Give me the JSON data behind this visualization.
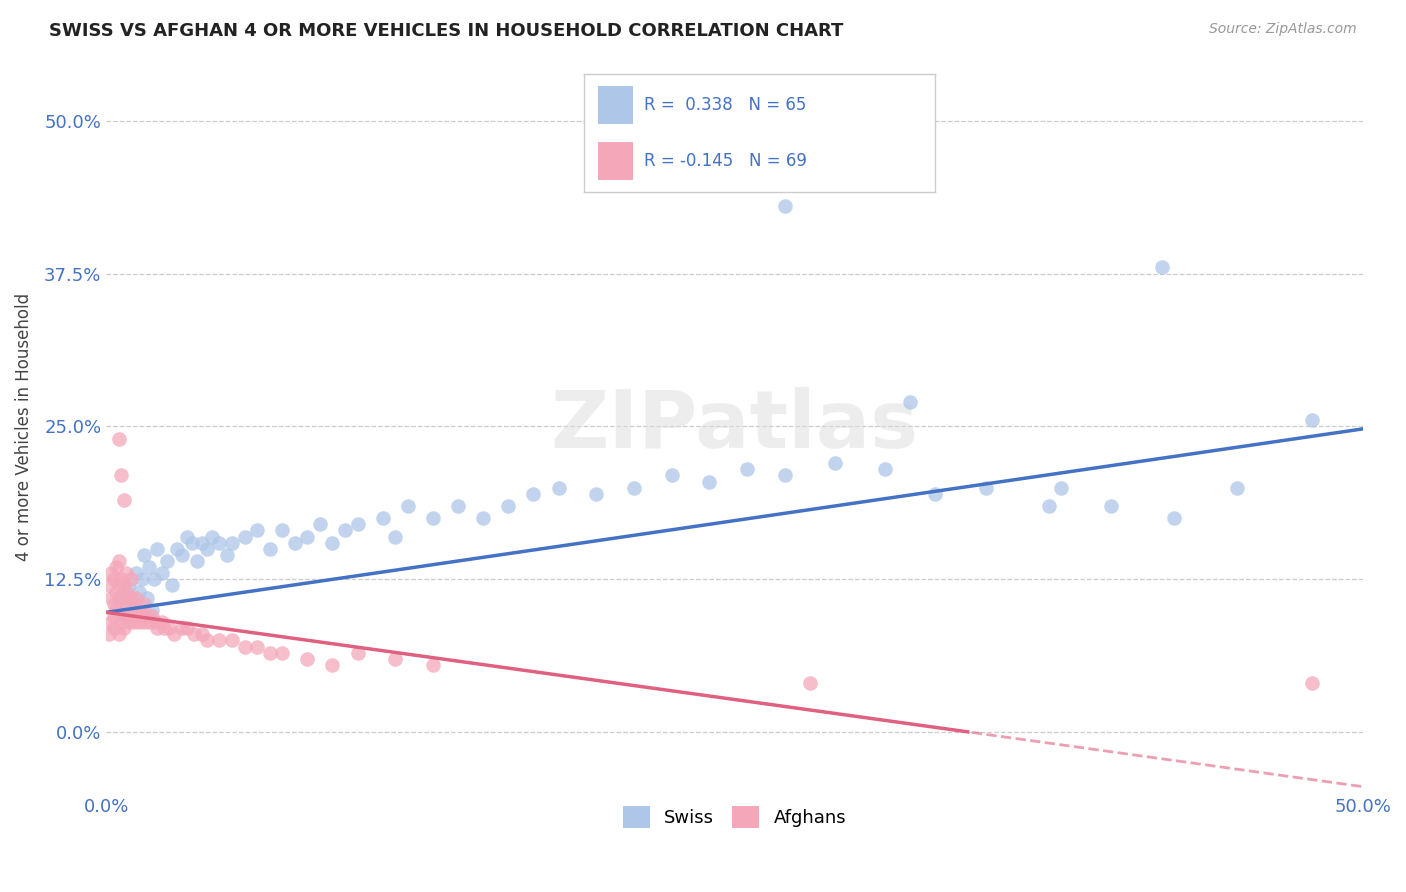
{
  "title": "SWISS VS AFGHAN 4 OR MORE VEHICLES IN HOUSEHOLD CORRELATION CHART",
  "source_text": "Source: ZipAtlas.com",
  "xlabel": "",
  "ylabel": "4 or more Vehicles in Household",
  "xlim": [
    0.0,
    0.5
  ],
  "ylim": [
    -0.05,
    0.55
  ],
  "xtick_labels": [
    "0.0%",
    "50.0%"
  ],
  "ytick_labels": [
    "0.0%",
    "12.5%",
    "25.0%",
    "37.5%",
    "50.0%"
  ],
  "ytick_vals": [
    0.0,
    0.125,
    0.25,
    0.375,
    0.5
  ],
  "xtick_vals": [
    0.0,
    0.5
  ],
  "grid_color": "#cccccc",
  "background_color": "#ffffff",
  "swiss_color": "#aec6e8",
  "afghan_color": "#f4a7b9",
  "swiss_line_color": "#4472c4",
  "afghan_line_color": "#e06080",
  "swiss_R": 0.338,
  "swiss_N": 65,
  "afghan_R": -0.145,
  "afghan_N": 69,
  "legend_swiss_label": "Swiss",
  "legend_afghan_label": "Afghans",
  "watermark": "ZIPatlas"
}
